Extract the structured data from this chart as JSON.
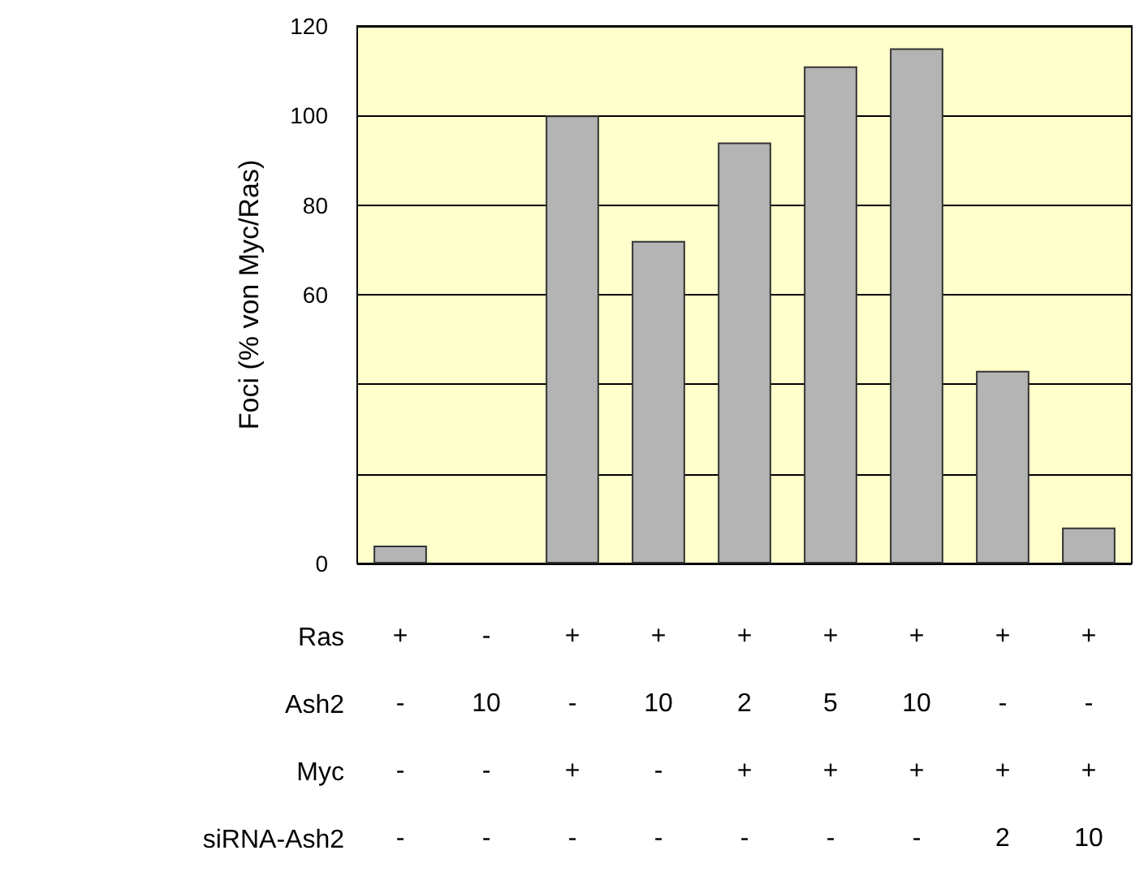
{
  "chart_data": {
    "type": "bar",
    "ylabel": "Foci (% von Myc/Ras)",
    "categories": [
      "+\n-\n-\n-",
      "-\n10\n-\n-",
      "+\n-\n+\n-",
      "+\n10\n-\n-",
      "+\n2\n+\n-",
      "+\n5\n+\n-",
      "+\n10\n+\n-",
      "+\n-\n+\n2",
      "+\n-\n+\n10"
    ],
    "values": [
      4,
      0,
      100,
      72,
      94,
      111,
      115,
      43,
      8
    ],
    "color": "#b4b4b4",
    "ylim": [
      0,
      120
    ],
    "yticks": [
      0,
      {
        "value": 20,
        "label": null
      },
      {
        "value": 40,
        "label": null
      },
      60,
      80,
      100,
      120
    ],
    "grid": "y",
    "annotations": [
      "Ras",
      "Ash2",
      "Myc",
      "siRNA-Ash2"
    ]
  }
}
